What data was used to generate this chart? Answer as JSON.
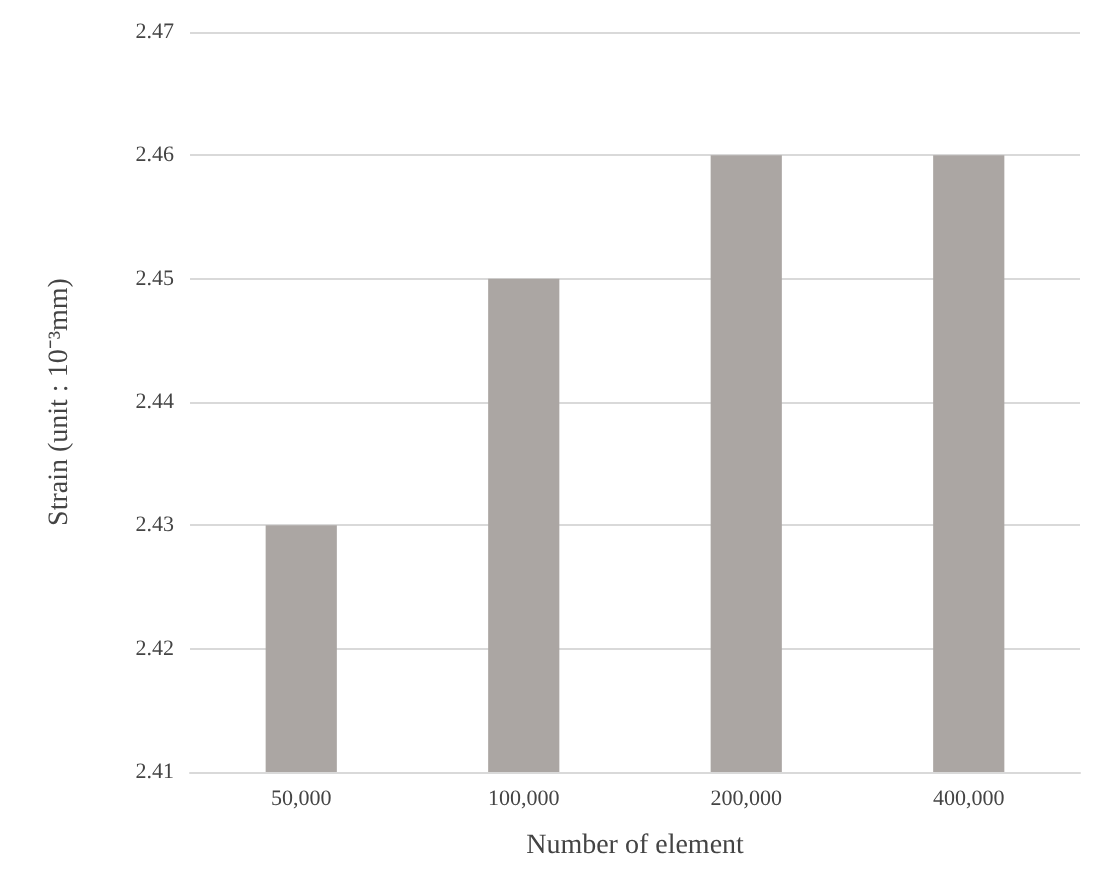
{
  "chart_data": {
    "type": "bar",
    "xlabel": "Number of element",
    "ylabel": "Strain (unit : 10⁻³mm)",
    "categories": [
      "50,000",
      "100,000",
      "200,000",
      "400,000"
    ],
    "values": [
      2.43,
      2.45,
      2.46,
      2.46
    ],
    "color": "#aba6a3",
    "ylim": [
      2.41,
      2.47
    ],
    "yticks": [
      2.41,
      2.42,
      2.43,
      2.44,
      2.45,
      2.46,
      2.47
    ],
    "grid": "y"
  }
}
